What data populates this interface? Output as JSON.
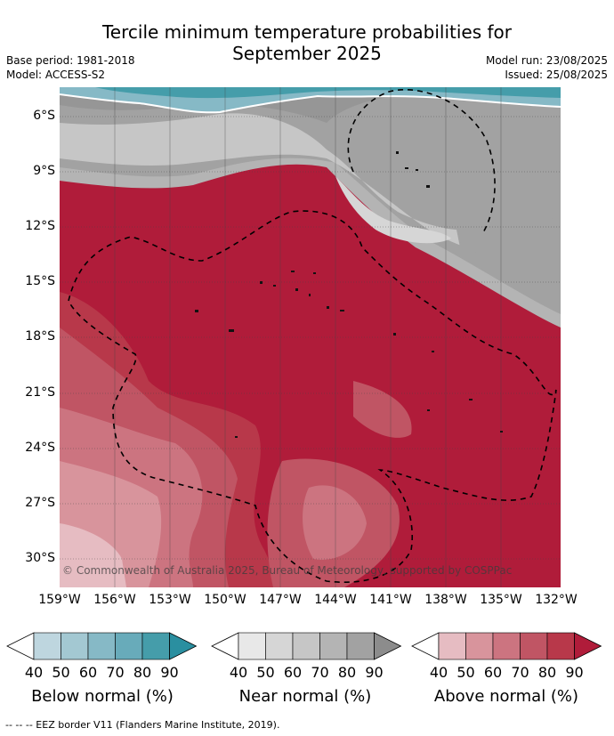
{
  "title_line1": "Tercile minimum temperature probabilities for",
  "title_line2": "September 2025",
  "base_period": "Base period: 1981-2018",
  "model": "Model: ACCESS-S2",
  "model_run": "Model run: 23/08/2025",
  "issued": "Issued: 25/08/2025",
  "copyright": "© Commonwealth of Australia 2025, Bureau of Meteorology, supported by COSPPac",
  "latitudes": [
    "6°S",
    "9°S",
    "12°S",
    "15°S",
    "18°S",
    "21°S",
    "24°S",
    "27°S",
    "30°S"
  ],
  "longitudes": [
    "159°W",
    "156°W",
    "153°W",
    "150°W",
    "147°W",
    "144°W",
    "141°W",
    "138°W",
    "135°W",
    "132°W"
  ],
  "colorbars": [
    {
      "label": "Below normal (%)",
      "ticks": [
        "40",
        "50",
        "60",
        "70",
        "80",
        "90"
      ],
      "colors": [
        "#ffffff",
        "#bed6df",
        "#a3c8d2",
        "#86b9c6",
        "#68abba",
        "#459daa",
        "#2a8fa0"
      ]
    },
    {
      "label": "Near normal (%)",
      "ticks": [
        "40",
        "50",
        "60",
        "70",
        "80",
        "90"
      ],
      "colors": [
        "#ffffff",
        "#e8e8e8",
        "#d6d6d6",
        "#c6c6c6",
        "#b4b4b4",
        "#a2a2a2",
        "#8c8c8c"
      ]
    },
    {
      "label": "Above normal (%)",
      "ticks": [
        "40",
        "50",
        "60",
        "70",
        "80",
        "90"
      ],
      "colors": [
        "#ffffff",
        "#e6bcc2",
        "#d8949c",
        "#cc7480",
        "#c05564",
        "#b8384a",
        "#b01c3a"
      ]
    }
  ],
  "footnote": "--  --  -- EEZ border V11 (Flanders Marine Institute, 2019)."
}
